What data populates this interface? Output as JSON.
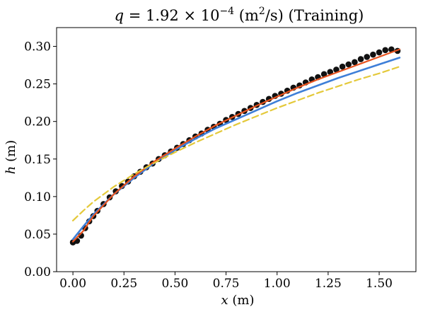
{
  "chart_data": {
    "type": "scatter",
    "title": {
      "var": "q",
      "eq": " = 1.92 × 10",
      "exp": "−4",
      "unit_open": " (m",
      "unit_exp": "2",
      "unit_close": "/s) (Training)"
    },
    "xlabel": {
      "var": "x",
      "unit": " (m)"
    },
    "ylabel": {
      "var": "h",
      "unit": " (m)"
    },
    "xlim": [
      -0.08,
      1.68
    ],
    "ylim": [
      0.0,
      0.325
    ],
    "xticks": [
      0.0,
      0.25,
      0.5,
      0.75,
      1.0,
      1.25,
      1.5
    ],
    "xtick_labels": [
      "0.00",
      "0.25",
      "0.50",
      "0.75",
      "1.00",
      "1.25",
      "1.50"
    ],
    "yticks": [
      0.0,
      0.05,
      0.1,
      0.15,
      0.2,
      0.25,
      0.3
    ],
    "ytick_labels": [
      "0.00",
      "0.05",
      "0.10",
      "0.15",
      "0.20",
      "0.25",
      "0.30"
    ],
    "grid": false,
    "legend": "none",
    "series": [
      {
        "kind": "scatter",
        "color": "#111111",
        "x": [
          0.0,
          0.02,
          0.04,
          0.06,
          0.08,
          0.1,
          0.12,
          0.15,
          0.18,
          0.21,
          0.24,
          0.27,
          0.3,
          0.33,
          0.36,
          0.39,
          0.42,
          0.45,
          0.48,
          0.51,
          0.54,
          0.57,
          0.6,
          0.63,
          0.66,
          0.69,
          0.72,
          0.75,
          0.78,
          0.81,
          0.84,
          0.87,
          0.9,
          0.93,
          0.96,
          0.99,
          1.02,
          1.05,
          1.08,
          1.11,
          1.14,
          1.17,
          1.2,
          1.23,
          1.26,
          1.29,
          1.32,
          1.35,
          1.38,
          1.41,
          1.44,
          1.47,
          1.5,
          1.53,
          1.56,
          1.59
        ],
        "y": [
          0.039,
          0.041,
          0.048,
          0.058,
          0.067,
          0.074,
          0.081,
          0.09,
          0.099,
          0.107,
          0.114,
          0.12,
          0.127,
          0.133,
          0.139,
          0.144,
          0.15,
          0.155,
          0.16,
          0.165,
          0.17,
          0.175,
          0.18,
          0.184,
          0.189,
          0.193,
          0.197,
          0.202,
          0.206,
          0.21,
          0.214,
          0.218,
          0.222,
          0.226,
          0.23,
          0.234,
          0.237,
          0.241,
          0.245,
          0.248,
          0.252,
          0.256,
          0.259,
          0.263,
          0.266,
          0.269,
          0.273,
          0.276,
          0.279,
          0.283,
          0.286,
          0.289,
          0.292,
          0.295,
          0.296,
          0.294
        ]
      },
      {
        "kind": "line",
        "color": "#e8531f",
        "dash": "none",
        "width": 2.2,
        "x": [
          0.0,
          0.05,
          0.1,
          0.2,
          0.3,
          0.4,
          0.5,
          0.6,
          0.7,
          0.8,
          0.9,
          1.0,
          1.1,
          1.2,
          1.3,
          1.4,
          1.5,
          1.6
        ],
        "y": [
          0.04,
          0.054,
          0.074,
          0.103,
          0.127,
          0.147,
          0.164,
          0.18,
          0.195,
          0.208,
          0.221,
          0.233,
          0.245,
          0.256,
          0.266,
          0.276,
          0.286,
          0.296
        ]
      },
      {
        "kind": "line",
        "color": "#3e7fd8",
        "dash": "none",
        "width": 2.6,
        "x": [
          0.0,
          0.05,
          0.1,
          0.2,
          0.3,
          0.4,
          0.5,
          0.6,
          0.7,
          0.8,
          0.9,
          1.0,
          1.1,
          1.2,
          1.3,
          1.4,
          1.5,
          1.6
        ],
        "y": [
          0.043,
          0.06,
          0.076,
          0.103,
          0.125,
          0.145,
          0.162,
          0.177,
          0.191,
          0.203,
          0.215,
          0.227,
          0.238,
          0.248,
          0.258,
          0.267,
          0.276,
          0.285
        ]
      },
      {
        "kind": "line",
        "color": "#e4c93a",
        "dash": "9,5",
        "width": 2.2,
        "x": [
          0.0,
          0.05,
          0.1,
          0.2,
          0.3,
          0.4,
          0.5,
          0.6,
          0.7,
          0.8,
          0.9,
          1.0,
          1.1,
          1.2,
          1.3,
          1.4,
          1.5,
          1.6
        ],
        "y": [
          0.068,
          0.081,
          0.093,
          0.113,
          0.13,
          0.145,
          0.159,
          0.172,
          0.184,
          0.196,
          0.207,
          0.218,
          0.228,
          0.238,
          0.247,
          0.256,
          0.264,
          0.273
        ]
      }
    ]
  }
}
